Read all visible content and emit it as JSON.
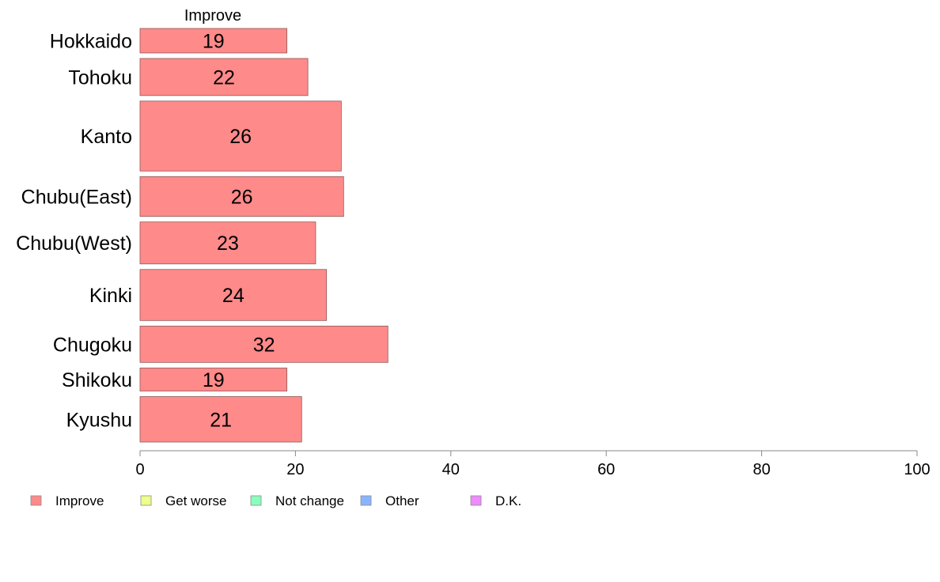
{
  "chart_data": {
    "type": "bar",
    "orientation": "horizontal",
    "stacked": true,
    "column_header": "Improve",
    "categories": [
      "Hokkaido",
      "Tohoku",
      "Kanto",
      "Chubu(East)",
      "Chubu(West)",
      "Kinki",
      "Chugoku",
      "Shikoku",
      "Kyushu"
    ],
    "category_weights": [
      0.35,
      0.53,
      1.0,
      0.57,
      0.6,
      0.73,
      0.52,
      0.33,
      0.65
    ],
    "series": [
      {
        "name": "Improve",
        "color": "#ff8a8a",
        "values": [
          18.9,
          21.6,
          25.9,
          26.2,
          22.6,
          24.0,
          31.9,
          18.9,
          20.8
        ],
        "labels": [
          "19",
          "22",
          "26",
          "26",
          "23",
          "24",
          "32",
          "19",
          "21"
        ]
      }
    ],
    "xlim": [
      0,
      100
    ],
    "xticks": [
      "0",
      "20",
      "40",
      "60",
      "80",
      "100"
    ],
    "legend": {
      "placement": "bottom-left",
      "entries": [
        {
          "name": "Improve",
          "color": "#ff8a8a"
        },
        {
          "name": "Get worse",
          "color": "#eeff8a"
        },
        {
          "name": "Not change",
          "color": "#8affbb"
        },
        {
          "name": "Other",
          "color": "#8ab4ff"
        },
        {
          "name": "D.K.",
          "color": "#f08aff"
        }
      ]
    },
    "grid": false
  }
}
